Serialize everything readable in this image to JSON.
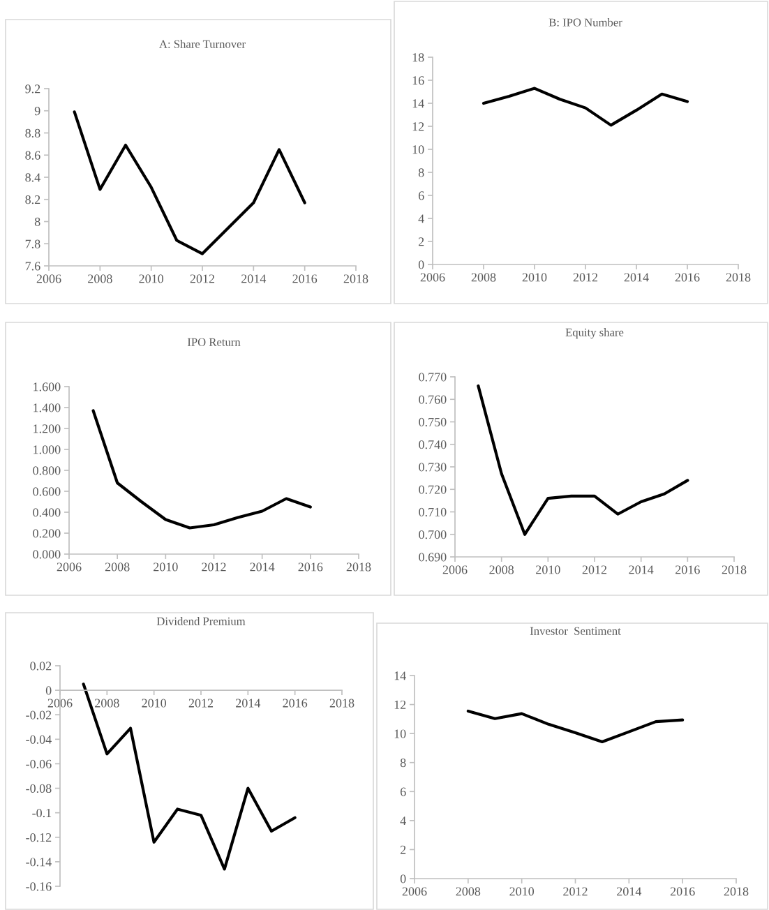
{
  "chart_data": [
    {
      "type": "line",
      "title": "A: Share Turnover",
      "x": [
        2007,
        2008,
        2009,
        2010,
        2011,
        2012,
        2013,
        2014,
        2015,
        2016
      ],
      "series": [
        {
          "color": "#000000",
          "values": [
            8.99,
            8.29,
            8.69,
            8.31,
            7.83,
            7.71,
            7.94,
            8.17,
            8.65,
            8.17
          ]
        }
      ],
      "xlim": [
        2006,
        2018
      ],
      "xticks": [
        2006,
        2008,
        2010,
        2012,
        2014,
        2016,
        2018
      ],
      "ylim": [
        7.6,
        9.2
      ],
      "yticks": [
        7.6,
        7.8,
        8,
        8.2,
        8.4,
        8.6,
        8.8,
        9,
        9.2
      ]
    },
    {
      "type": "line",
      "title": "B: IPO Number",
      "x": [
        2008,
        2009,
        2010,
        2011,
        2012,
        2013,
        2014,
        2015,
        2016
      ],
      "series": [
        {
          "color": "#000000",
          "values": [
            14.0,
            14.6,
            15.3,
            14.35,
            13.6,
            12.1,
            13.4,
            14.8,
            14.15
          ]
        }
      ],
      "xlim": [
        2006,
        2018
      ],
      "xticks": [
        2006,
        2008,
        2010,
        2012,
        2014,
        2016,
        2018
      ],
      "ylim": [
        0,
        18
      ],
      "yticks": [
        0,
        2,
        4,
        6,
        8,
        10,
        12,
        14,
        16,
        18
      ]
    },
    {
      "type": "line",
      "title": "IPO Return",
      "x": [
        2007,
        2008,
        2009,
        2010,
        2011,
        2012,
        2013,
        2014,
        2015,
        2016
      ],
      "series": [
        {
          "color": "#000000",
          "values": [
            1.37,
            0.68,
            0.5,
            0.33,
            0.25,
            0.28,
            0.35,
            0.41,
            0.53,
            0.45
          ]
        }
      ],
      "xlim": [
        2006,
        2018
      ],
      "xticks": [
        2006,
        2008,
        2010,
        2012,
        2014,
        2016,
        2018
      ],
      "ylim": [
        0,
        1.6
      ],
      "yticks": [
        {
          "value": 0,
          "label": "0.000"
        },
        {
          "value": 0.2,
          "label": "0.200"
        },
        {
          "value": 0.4,
          "label": "0.400"
        },
        {
          "value": 0.6,
          "label": "0.600"
        },
        {
          "value": 0.8,
          "label": "0.800"
        },
        {
          "value": 1.0,
          "label": "1.000"
        },
        {
          "value": 1.2,
          "label": "1.200"
        },
        {
          "value": 1.4,
          "label": "1.400"
        },
        {
          "value": 1.6,
          "label": "1.600"
        }
      ]
    },
    {
      "type": "line",
      "title": "Equity share",
      "x": [
        2007,
        2008,
        2009,
        2010,
        2011,
        2012,
        2013,
        2014,
        2015,
        2016
      ],
      "series": [
        {
          "color": "#000000",
          "values": [
            0.766,
            0.727,
            0.7,
            0.716,
            0.717,
            0.717,
            0.709,
            0.7145,
            0.718,
            0.724
          ]
        }
      ],
      "xlim": [
        2006,
        2018
      ],
      "xticks": [
        2006,
        2008,
        2010,
        2012,
        2014,
        2016,
        2018
      ],
      "ylim": [
        0.69,
        0.77
      ],
      "yticks": [
        {
          "value": 0.69,
          "label": "0.690"
        },
        {
          "value": 0.7,
          "label": "0.700"
        },
        {
          "value": 0.71,
          "label": "0.710"
        },
        {
          "value": 0.72,
          "label": "0.720"
        },
        {
          "value": 0.73,
          "label": "0.730"
        },
        {
          "value": 0.74,
          "label": "0.740"
        },
        {
          "value": 0.75,
          "label": "0.750"
        },
        {
          "value": 0.76,
          "label": "0.760"
        },
        {
          "value": 0.77,
          "label": "0.770"
        }
      ]
    },
    {
      "type": "line",
      "title": "Dividend Premium",
      "x": [
        2007,
        2008,
        2009,
        2010,
        2011,
        2012,
        2013,
        2014,
        2015,
        2016
      ],
      "series": [
        {
          "color": "#000000",
          "values": [
            0.005,
            -0.052,
            -0.031,
            -0.124,
            -0.097,
            -0.102,
            -0.146,
            -0.08,
            -0.115,
            -0.104
          ]
        }
      ],
      "xlim": [
        2006,
        2018
      ],
      "xticks": [
        2006,
        2008,
        2010,
        2012,
        2014,
        2016,
        2018
      ],
      "ylim": [
        -0.16,
        0.02
      ],
      "yticks": [
        -0.16,
        -0.14,
        -0.12,
        -0.1,
        -0.08,
        -0.06,
        -0.04,
        -0.02,
        0,
        0.02
      ]
    },
    {
      "type": "line",
      "title": "Investor  Sentiment",
      "x": [
        2008,
        2009,
        2010,
        2011,
        2012,
        2013,
        2014,
        2015,
        2016
      ],
      "series": [
        {
          "color": "#000000",
          "values": [
            11.55,
            11.03,
            11.37,
            10.64,
            10.05,
            9.43,
            10.12,
            10.82,
            10.94
          ]
        }
      ],
      "xlim": [
        2006,
        2018
      ],
      "xticks": [
        2006,
        2008,
        2010,
        2012,
        2014,
        2016,
        2018
      ],
      "ylim": [
        0,
        14
      ],
      "yticks": [
        0,
        2,
        4,
        6,
        8,
        10,
        12,
        14
      ]
    }
  ]
}
